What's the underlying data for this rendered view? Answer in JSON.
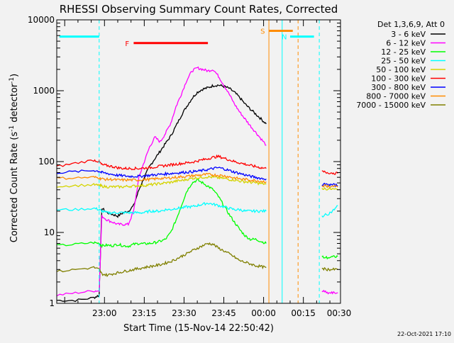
{
  "chart_data": {
    "type": "line",
    "title": "RHESSI Observing Summary Count Rates, Corrected",
    "xlabel": "Start Time (15-Nov-14 22:50:42)",
    "ylabel": "Corrected Count Rate (s",
    "ylabel_sup": "-1",
    "ylabel_mid": " detector",
    "ylabel_end": ")",
    "y_scale": "log",
    "ylim": [
      1,
      10000
    ],
    "xlim_minutes": [
      -9,
      98
    ],
    "x_ticks": [
      {
        "t": 9,
        "label": "23:00"
      },
      {
        "t": 24,
        "label": "23:15"
      },
      {
        "t": 39,
        "label": "23:30"
      },
      {
        "t": 54,
        "label": "23:45"
      },
      {
        "t": 69,
        "label": "00:00"
      },
      {
        "t": 84,
        "label": "00:15"
      },
      {
        "t": 99,
        "label": "00:30"
      }
    ],
    "y_ticks": [
      {
        "v": 1,
        "label": "1"
      },
      {
        "v": 10,
        "label": "10"
      },
      {
        "v": 100,
        "label": "100"
      },
      {
        "v": 1000,
        "label": "1000"
      },
      {
        "v": 10000,
        "label": "10000"
      }
    ],
    "legend": {
      "header": "Det 1,3,6,9, Att 0",
      "placement": "right",
      "entries": [
        {
          "label": "3 - 6 keV",
          "color": "#000000"
        },
        {
          "label": "6 - 12 keV",
          "color": "#ff00ff"
        },
        {
          "label": "12 - 25 keV",
          "color": "#00ff00"
        },
        {
          "label": "25 - 50 keV",
          "color": "#00ffff"
        },
        {
          "label": "50 - 100 keV",
          "color": "#d4d400"
        },
        {
          "label": "100 - 300 keV",
          "color": "#ff0000"
        },
        {
          "label": "300 - 800 keV",
          "color": "#0000ff"
        },
        {
          "label": "800 - 7000 keV",
          "color": "#ff8c00"
        },
        {
          "label": "7000 - 15000 keV",
          "color": "#808000"
        }
      ]
    },
    "bars": [
      {
        "label": "N",
        "color": "#00ffff",
        "y": 5800,
        "segments": [
          [
            -8,
            7
          ],
          [
            79,
            88
          ]
        ]
      },
      {
        "label": "F",
        "color": "#ff0000",
        "y": 4700,
        "segments": [
          [
            20,
            48
          ]
        ]
      },
      {
        "label": "S",
        "color": "#ff8c00",
        "y": 7000,
        "segments": [
          [
            71,
            80
          ]
        ]
      }
    ],
    "markers": [
      {
        "t": -9,
        "color": "#00ffff",
        "style": "solid"
      },
      {
        "t": 7,
        "color": "#00ffff",
        "style": "dashed"
      },
      {
        "t": 71,
        "color": "#ff8c00",
        "style": "solid"
      },
      {
        "t": 76,
        "color": "#00ffff",
        "style": "solid"
      },
      {
        "t": 82,
        "color": "#ff8c00",
        "style": "dashed"
      },
      {
        "t": 90,
        "color": "#00ffff",
        "style": "dashed"
      }
    ],
    "series": [
      {
        "name": "3 - 6 keV",
        "color": "#000000",
        "x": [
          -9,
          -2,
          5,
          7,
          8,
          10,
          12,
          14,
          16,
          18,
          20,
          22,
          24,
          26,
          28,
          30,
          32,
          34,
          36,
          38,
          40,
          42,
          44,
          46,
          48,
          50,
          52,
          54,
          56,
          58,
          60,
          62,
          64,
          66,
          68,
          70
        ],
        "y": [
          1.1,
          1.1,
          1.2,
          1.3,
          22,
          19,
          18,
          17,
          19,
          20,
          24,
          40,
          60,
          85,
          110,
          140,
          180,
          230,
          320,
          450,
          600,
          780,
          950,
          1050,
          1100,
          1180,
          1200,
          1150,
          1080,
          950,
          800,
          650,
          550,
          470,
          400,
          340
        ]
      },
      {
        "name": "6 - 12 keV",
        "color": "#ff00ff",
        "x": [
          -9,
          -2,
          5,
          7,
          8,
          10,
          12,
          14,
          16,
          18,
          20,
          22,
          24,
          26,
          28,
          30,
          32,
          34,
          36,
          38,
          40,
          42,
          44,
          46,
          48,
          50,
          52,
          54,
          56,
          58,
          60,
          62,
          64,
          66,
          68,
          70
        ],
        "y": [
          1.3,
          1.4,
          1.5,
          1.5,
          17,
          15,
          14,
          13,
          13,
          13,
          20,
          60,
          100,
          160,
          220,
          190,
          250,
          350,
          600,
          900,
          1400,
          1900,
          2100,
          2000,
          1900,
          2000,
          1600,
          1200,
          900,
          650,
          500,
          400,
          320,
          260,
          210,
          170
        ]
      },
      {
        "name": "12 - 25 keV",
        "color": "#00ff00",
        "x": [
          -9,
          -2,
          5,
          7,
          8,
          10,
          12,
          14,
          16,
          18,
          20,
          22,
          24,
          26,
          28,
          30,
          32,
          34,
          36,
          38,
          40,
          42,
          44,
          46,
          48,
          50,
          52,
          54,
          56,
          58,
          60,
          62,
          64,
          66,
          68,
          70
        ],
        "y": [
          6.5,
          6.8,
          7.2,
          7,
          6.5,
          6.6,
          6.5,
          6.8,
          6.5,
          6.4,
          6.8,
          7,
          6.9,
          7,
          7.2,
          7.5,
          8,
          10,
          15,
          24,
          38,
          50,
          55,
          50,
          45,
          40,
          32,
          24,
          18,
          14,
          11,
          9,
          8,
          8,
          7.5,
          7
        ]
      },
      {
        "name": "25 - 50 keV",
        "color": "#00ffff",
        "x": [
          -9,
          -2,
          5,
          7,
          8,
          10,
          12,
          14,
          16,
          18,
          20,
          22,
          24,
          26,
          28,
          30,
          32,
          34,
          36,
          38,
          40,
          42,
          44,
          46,
          48,
          50,
          52,
          54,
          56,
          58,
          60,
          62,
          64,
          66,
          68,
          70
        ],
        "y": [
          21,
          21,
          22,
          21,
          20,
          19,
          19,
          19,
          19,
          19,
          19,
          19,
          19,
          20,
          20,
          20,
          21,
          21,
          22,
          22,
          23,
          23,
          24,
          25,
          26,
          25,
          24,
          23,
          22,
          21,
          21,
          20,
          20,
          20,
          20,
          20
        ]
      },
      {
        "name": "50 - 100 keV",
        "color": "#d4d400",
        "x": [
          -9,
          -2,
          5,
          7,
          8,
          10,
          12,
          14,
          16,
          18,
          20,
          22,
          24,
          26,
          28,
          30,
          32,
          34,
          36,
          38,
          40,
          42,
          44,
          46,
          48,
          50,
          52,
          54,
          56,
          58,
          60,
          62,
          64,
          66,
          68,
          70
        ],
        "y": [
          45,
          46,
          47,
          46,
          45,
          44,
          44,
          44,
          44,
          45,
          45,
          46,
          46,
          47,
          48,
          49,
          50,
          51,
          53,
          54,
          56,
          58,
          59,
          60,
          61,
          60,
          59,
          58,
          56,
          55,
          53,
          52,
          51,
          50,
          49,
          48
        ]
      },
      {
        "name": "100 - 300 keV",
        "color": "#ff0000",
        "x": [
          -9,
          -2,
          5,
          7,
          8,
          10,
          12,
          14,
          16,
          18,
          20,
          22,
          24,
          26,
          28,
          30,
          32,
          34,
          36,
          38,
          40,
          42,
          44,
          46,
          48,
          50,
          52,
          54,
          56,
          58,
          60,
          62,
          64,
          66,
          68,
          70
        ],
        "y": [
          85,
          95,
          105,
          100,
          90,
          88,
          85,
          82,
          80,
          80,
          80,
          80,
          81,
          82,
          84,
          86,
          88,
          90,
          92,
          94,
          96,
          98,
          102,
          106,
          110,
          115,
          118,
          112,
          106,
          100,
          96,
          92,
          88,
          85,
          82,
          80
        ]
      },
      {
        "name": "300 - 800 keV",
        "color": "#0000ff",
        "x": [
          -9,
          -2,
          5,
          7,
          8,
          10,
          12,
          14,
          16,
          18,
          20,
          22,
          24,
          26,
          28,
          30,
          32,
          34,
          36,
          38,
          40,
          42,
          44,
          46,
          48,
          50,
          52,
          54,
          56,
          58,
          60,
          62,
          64,
          66,
          68,
          70
        ],
        "y": [
          70,
          72,
          75,
          73,
          70,
          68,
          66,
          64,
          63,
          62,
          62,
          62,
          63,
          64,
          65,
          66,
          67,
          68,
          69,
          70,
          71,
          72,
          73,
          75,
          77,
          80,
          82,
          79,
          75,
          71,
          68,
          65,
          62,
          60,
          58,
          57
        ]
      },
      {
        "name": "800 - 7000 keV",
        "color": "#ff8c00",
        "x": [
          -9,
          -2,
          5,
          7,
          8,
          10,
          12,
          14,
          16,
          18,
          20,
          22,
          24,
          26,
          28,
          30,
          32,
          34,
          36,
          38,
          40,
          42,
          44,
          46,
          48,
          50,
          52,
          54,
          56,
          58,
          60,
          62,
          64,
          66,
          68,
          70
        ],
        "y": [
          58,
          59,
          60,
          59,
          57,
          56,
          56,
          55,
          55,
          55,
          55,
          55,
          56,
          56,
          57,
          58,
          58,
          59,
          60,
          61,
          62,
          63,
          64,
          65,
          66,
          65,
          64,
          63,
          61,
          59,
          57,
          56,
          55,
          54,
          53,
          52
        ]
      },
      {
        "name": "7000 - 15000 keV",
        "color": "#808000",
        "x": [
          -9,
          -2,
          5,
          7,
          8,
          10,
          12,
          14,
          16,
          18,
          20,
          22,
          24,
          26,
          28,
          30,
          32,
          34,
          36,
          38,
          40,
          42,
          44,
          46,
          48,
          50,
          52,
          54,
          56,
          58,
          60,
          62,
          64,
          66,
          68,
          70
        ],
        "y": [
          2.8,
          3,
          3.2,
          3,
          2.6,
          2.5,
          2.6,
          2.7,
          2.8,
          2.9,
          3,
          3.1,
          3.2,
          3.3,
          3.4,
          3.5,
          3.7,
          3.9,
          4.2,
          4.6,
          5,
          5.5,
          6,
          6.5,
          7,
          6.8,
          6,
          5.5,
          5,
          4.5,
          4,
          3.8,
          3.6,
          3.4,
          3.3,
          3.2
        ]
      }
    ],
    "after_gap": {
      "x": [
        91,
        93,
        95,
        97
      ],
      "series": [
        {
          "name": "100 - 300 keV",
          "y": [
            72,
            70,
            69,
            68
          ]
        },
        {
          "name": "300 - 800 keV",
          "y": [
            48,
            47,
            47,
            46
          ]
        },
        {
          "name": "800 - 7000 keV",
          "y": [
            46,
            45,
            45,
            44
          ]
        },
        {
          "name": "50 - 100 keV",
          "y": [
            42,
            41,
            41,
            40
          ]
        },
        {
          "name": "25 - 50 keV",
          "y": [
            17,
            18,
            20,
            24
          ]
        },
        {
          "name": "12 - 25 keV",
          "y": [
            4.5,
            4.4,
            4.5,
            4.6
          ]
        },
        {
          "name": "7000 - 15000 keV",
          "y": [
            3.1,
            3,
            3,
            3
          ]
        },
        {
          "name": "6 - 12 keV",
          "y": [
            1.5,
            1.4,
            1.4,
            1.4
          ]
        }
      ]
    },
    "timestamp": "22-Oct-2021 17:10"
  }
}
